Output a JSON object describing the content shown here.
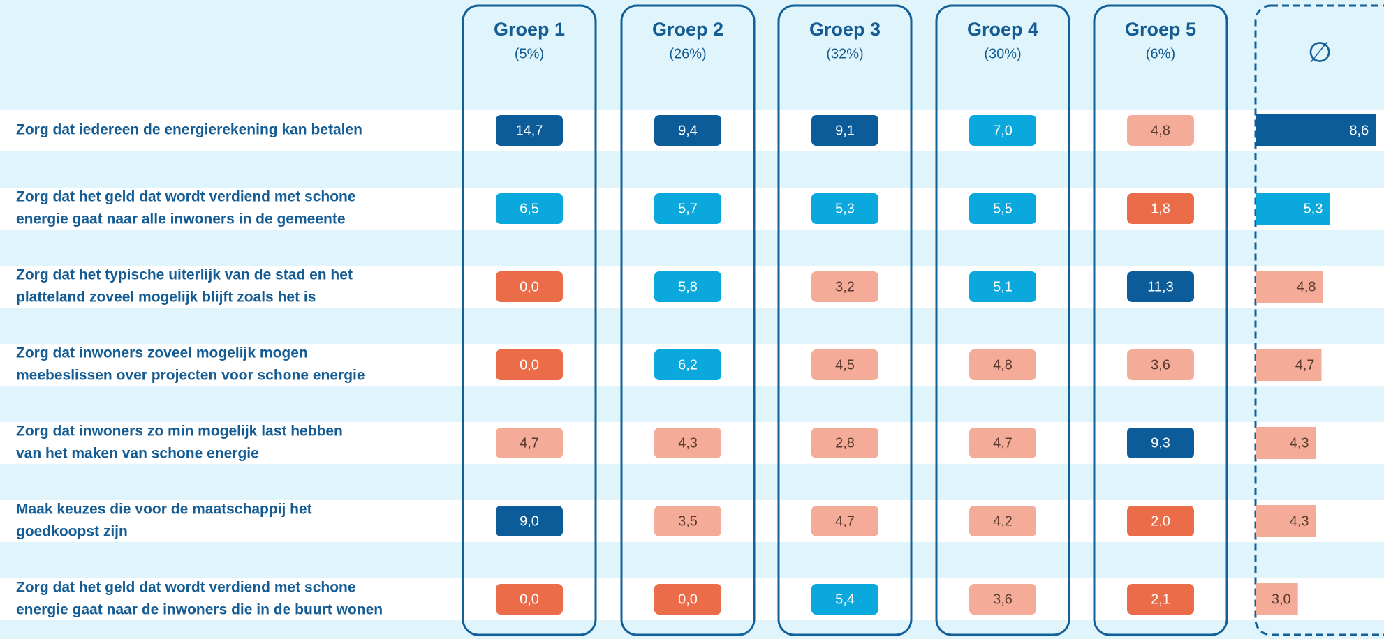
{
  "avg_header": "∅",
  "groups": [
    {
      "name": "Groep 1",
      "share": "(5%)"
    },
    {
      "name": "Groep 2",
      "share": "(26%)"
    },
    {
      "name": "Groep 3",
      "share": "(32%)"
    },
    {
      "name": "Groep 4",
      "share": "(30%)"
    },
    {
      "name": "Groep 5",
      "share": "(6%)"
    }
  ],
  "text_colors": {
    "#0b5c99": "#ffffff",
    "#0aa8dc": "#ffffff",
    "#f4ab98": "#5a3b30",
    "#ea6c48": "#ffffff"
  },
  "rows": [
    {
      "label": [
        "Zorg dat iedereen de energierekening kan betalen"
      ],
      "cells": [
        {
          "value": 14.7,
          "label": "14,7",
          "color": "#0b5c99"
        },
        {
          "value": 9.4,
          "label": "9,4",
          "color": "#0b5c99"
        },
        {
          "value": 9.1,
          "label": "9,1",
          "color": "#0b5c99"
        },
        {
          "value": 7.0,
          "label": "7,0",
          "color": "#0aa8dc"
        },
        {
          "value": 4.8,
          "label": "4,8",
          "color": "#f4ab98"
        }
      ],
      "average": {
        "value": 8.6,
        "label": "8,6",
        "color": "#0b5c99"
      }
    },
    {
      "label": [
        "Zorg dat het geld dat wordt verdiend met schone",
        "energie gaat naar alle inwoners in de gemeente"
      ],
      "cells": [
        {
          "value": 6.5,
          "label": "6,5",
          "color": "#0aa8dc"
        },
        {
          "value": 5.7,
          "label": "5,7",
          "color": "#0aa8dc"
        },
        {
          "value": 5.3,
          "label": "5,3",
          "color": "#0aa8dc"
        },
        {
          "value": 5.5,
          "label": "5,5",
          "color": "#0aa8dc"
        },
        {
          "value": 1.8,
          "label": "1,8",
          "color": "#ea6c48"
        }
      ],
      "average": {
        "value": 5.3,
        "label": "5,3",
        "color": "#0aa8dc"
      }
    },
    {
      "label": [
        "Zorg dat het typische uiterlijk van de stad en het",
        "platteland zoveel mogelijk blijft zoals het is"
      ],
      "cells": [
        {
          "value": 0.0,
          "label": "0,0",
          "color": "#ea6c48"
        },
        {
          "value": 5.8,
          "label": "5,8",
          "color": "#0aa8dc"
        },
        {
          "value": 3.2,
          "label": "3,2",
          "color": "#f4ab98"
        },
        {
          "value": 5.1,
          "label": "5,1",
          "color": "#0aa8dc"
        },
        {
          "value": 11.3,
          "label": "11,3",
          "color": "#0b5c99"
        }
      ],
      "average": {
        "value": 4.8,
        "label": "4,8",
        "color": "#f4ab98"
      }
    },
    {
      "label": [
        "Zorg dat inwoners zoveel mogelijk mogen",
        "meebeslissen over projecten voor schone energie"
      ],
      "cells": [
        {
          "value": 0.0,
          "label": "0,0",
          "color": "#ea6c48"
        },
        {
          "value": 6.2,
          "label": "6,2",
          "color": "#0aa8dc"
        },
        {
          "value": 4.5,
          "label": "4,5",
          "color": "#f4ab98"
        },
        {
          "value": 4.8,
          "label": "4,8",
          "color": "#f4ab98"
        },
        {
          "value": 3.6,
          "label": "3,6",
          "color": "#f4ab98"
        }
      ],
      "average": {
        "value": 4.7,
        "label": "4,7",
        "color": "#f4ab98"
      }
    },
    {
      "label": [
        "Zorg dat inwoners zo min mogelijk last hebben",
        "van het maken van schone energie"
      ],
      "cells": [
        {
          "value": 4.7,
          "label": "4,7",
          "color": "#f4ab98"
        },
        {
          "value": 4.3,
          "label": "4,3",
          "color": "#f4ab98"
        },
        {
          "value": 2.8,
          "label": "2,8",
          "color": "#f4ab98"
        },
        {
          "value": 4.7,
          "label": "4,7",
          "color": "#f4ab98"
        },
        {
          "value": 9.3,
          "label": "9,3",
          "color": "#0b5c99"
        }
      ],
      "average": {
        "value": 4.3,
        "label": "4,3",
        "color": "#f4ab98"
      }
    },
    {
      "label": [
        "Maak keuzes die voor de maatschappij het",
        "goedkoopst zijn"
      ],
      "cells": [
        {
          "value": 9.0,
          "label": "9,0",
          "color": "#0b5c99"
        },
        {
          "value": 3.5,
          "label": "3,5",
          "color": "#f4ab98"
        },
        {
          "value": 4.7,
          "label": "4,7",
          "color": "#f4ab98"
        },
        {
          "value": 4.2,
          "label": "4,2",
          "color": "#f4ab98"
        },
        {
          "value": 2.0,
          "label": "2,0",
          "color": "#ea6c48"
        }
      ],
      "average": {
        "value": 4.3,
        "label": "4,3",
        "color": "#f4ab98"
      }
    },
    {
      "label": [
        "Zorg dat het geld dat wordt verdiend met schone",
        "energie gaat naar de inwoners die in de buurt wonen"
      ],
      "cells": [
        {
          "value": 0.0,
          "label": "0,0",
          "color": "#ea6c48"
        },
        {
          "value": 0.0,
          "label": "0,0",
          "color": "#ea6c48"
        },
        {
          "value": 5.4,
          "label": "5,4",
          "color": "#0aa8dc"
        },
        {
          "value": 3.6,
          "label": "3,6",
          "color": "#f4ab98"
        },
        {
          "value": 2.1,
          "label": "2,1",
          "color": "#ea6c48"
        }
      ],
      "average": {
        "value": 3.0,
        "label": "3,0",
        "color": "#f4ab98"
      }
    }
  ]
}
